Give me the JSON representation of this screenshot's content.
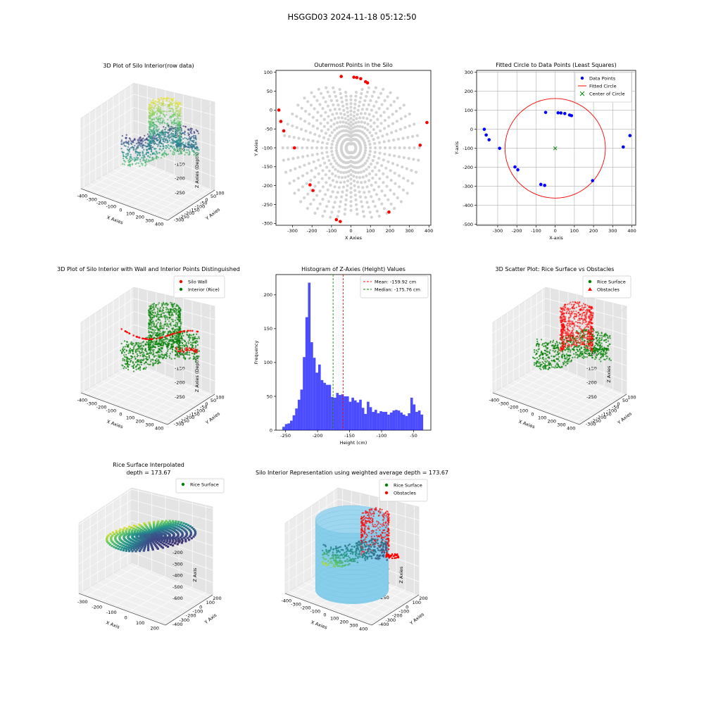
{
  "suptitle": "HSGGD03 2024-11-18 05:12:50",
  "colors": {
    "blue": "#0000ff",
    "red": "#ff0000",
    "green": "#008000",
    "gray": "#d3d3d3",
    "sky": "#87ceeb",
    "hist": "#0000ff"
  },
  "chart_data": [
    {
      "type": "scatter3d",
      "title": "3D Plot of Silo Interior(row data)",
      "xlabel": "X Axies",
      "ylabel": "Y Axies",
      "zlabel": "Z Axies (Depth)",
      "xticks": [
        "-400",
        "-300",
        "-200",
        "-100",
        "0",
        "100",
        "200",
        "300",
        "400"
      ],
      "yticks": [
        "100",
        "50",
        "0",
        "-50",
        "-100",
        "-150",
        "-200",
        "-250",
        "-300"
      ],
      "zticks": [
        "-50",
        "-100",
        "-150",
        "-200",
        "-250"
      ],
      "colormap": "viridis"
    },
    {
      "type": "scatter",
      "title": "Outermost Points in the Silo",
      "xlabel": "X Axies",
      "ylabel": "Y Axies",
      "xticks": [
        "-300",
        "-200",
        "-100",
        "0",
        "100",
        "200",
        "300",
        "400"
      ],
      "yticks": [
        "100",
        "50",
        "0",
        "-50",
        "-100",
        "-150",
        "-200",
        "-250",
        "-300"
      ],
      "xlim": [
        -385,
        410
      ],
      "ylim": [
        -305,
        105
      ],
      "series": [
        {
          "color": "gray"
        },
        {
          "color": "red",
          "points": [
            [
              -370,
              0
            ],
            [
              -360,
              -30
            ],
            [
              -345,
              -55
            ],
            [
              -290,
              -100
            ],
            [
              -210,
              -198
            ],
            [
              -195,
              -213
            ],
            [
              -75,
              -290
            ],
            [
              -55,
              -295
            ],
            [
              -50,
              89
            ],
            [
              15,
              87
            ],
            [
              30,
              86
            ],
            [
              50,
              83
            ],
            [
              75,
              75
            ],
            [
              85,
              72
            ],
            [
              195,
              -270
            ],
            [
              355,
              -93
            ],
            [
              390,
              -33
            ]
          ]
        }
      ]
    },
    {
      "type": "scatter",
      "title": "Fitted Circle to Data Points (Least Squares)",
      "xlabel": "X-axis",
      "ylabel": "Y-axis",
      "xticks": [
        "-300",
        "-200",
        "-100",
        "0",
        "100",
        "200",
        "300",
        "400"
      ],
      "yticks": [
        "300",
        "200",
        "100",
        "0",
        "-100",
        "-200",
        "-300",
        "-400",
        "-500"
      ],
      "xlim": [
        -410,
        420
      ],
      "ylim": [
        -505,
        310
      ],
      "legend": [
        "Data Points",
        "Fitted Circle",
        "Center of Circle"
      ],
      "series": [
        {
          "name": "Data Points",
          "color": "blue",
          "points": [
            [
              -370,
              0
            ],
            [
              -360,
              -30
            ],
            [
              -345,
              -55
            ],
            [
              -290,
              -100
            ],
            [
              -210,
              -198
            ],
            [
              -195,
              -213
            ],
            [
              -75,
              -290
            ],
            [
              -55,
              -295
            ],
            [
              -50,
              89
            ],
            [
              15,
              87
            ],
            [
              30,
              86
            ],
            [
              50,
              83
            ],
            [
              75,
              75
            ],
            [
              85,
              72
            ],
            [
              195,
              -270
            ],
            [
              355,
              -93
            ],
            [
              390,
              -33
            ]
          ]
        },
        {
          "name": "Fitted Circle",
          "color": "red",
          "center": [
            0,
            -100
          ],
          "radius": 262
        },
        {
          "name": "Center of Circle",
          "color": "green",
          "points": [
            [
              0,
              -100
            ]
          ]
        }
      ]
    },
    {
      "type": "scatter3d",
      "title": "3D Plot of Silo Interior with Wall and Interior Points Distinguished",
      "xlabel": "X Axies",
      "ylabel": "Y Axies",
      "zlabel": "Z Axies (Depth)",
      "xticks": [
        "-400",
        "-300",
        "-200",
        "-100",
        "0",
        "100",
        "200",
        "300",
        "400"
      ],
      "yticks": [
        "100",
        "50",
        "0",
        "-50",
        "-100",
        "-150",
        "-200",
        "-250",
        "-300"
      ],
      "zticks": [
        "-50",
        "-100",
        "-150",
        "-200",
        "-250"
      ],
      "legend": [
        "Silo Wall",
        "Interior (Rice)"
      ],
      "legend_colors": [
        "red",
        "green"
      ]
    },
    {
      "type": "bar",
      "title": "Histogram of Z-Axies (Height) Values",
      "xlabel": "Height (cm)",
      "ylabel": "Frequency",
      "xticks": [
        "-250",
        "-200",
        "-150",
        "-100",
        "-50"
      ],
      "yticks": [
        "0",
        "50",
        "100",
        "150",
        "200"
      ],
      "xlim": [
        -265,
        -23
      ],
      "ylim": [
        0,
        230
      ],
      "bin_start": -255,
      "bin_width": 4,
      "values": [
        5,
        9,
        10,
        14,
        22,
        32,
        45,
        60,
        108,
        167,
        218,
        130,
        107,
        85,
        97,
        74,
        70,
        67,
        67,
        49,
        48,
        55,
        52,
        53,
        50,
        50,
        42,
        48,
        44,
        41,
        45,
        33,
        24,
        42,
        34,
        27,
        30,
        25,
        28,
        27,
        27,
        23,
        26,
        29,
        30,
        29,
        26,
        23,
        21,
        25,
        48,
        38,
        27,
        29,
        23
      ],
      "legend": [
        "Mean: -159.92 cm",
        "Median: -175.76 cm"
      ],
      "mean": -159.92,
      "median": -175.76
    },
    {
      "type": "scatter3d",
      "title": "3D Scatter Plot: Rice Surface vs Obstacles",
      "xlabel": "X Axies",
      "ylabel": "Y Axies",
      "zlabel": "Z Axies",
      "xticks": [
        "-400",
        "-300",
        "-200",
        "-100",
        "0",
        "100",
        "200",
        "300",
        "400"
      ],
      "yticks": [
        "100",
        "50",
        "0",
        "-50",
        "-100",
        "-150",
        "-200",
        "-250",
        "-300"
      ],
      "zticks": [
        "-50",
        "-100",
        "-150",
        "-200",
        "-250"
      ],
      "legend": [
        "Rice Surface",
        "Obstacles"
      ],
      "legend_colors": [
        "green",
        "red"
      ]
    },
    {
      "type": "surface3d",
      "title": "Rice Surface Interpolated",
      "subtitle": "depth = 173.67",
      "xlabel": "X Axis",
      "ylabel": "Y Axis",
      "zlabel": "Z Axis",
      "xticks": [
        "-300",
        "-200",
        "-100",
        "0",
        "100",
        "200"
      ],
      "yticks": [
        "200",
        "100",
        "0",
        "-100",
        "-200",
        "-300",
        "-400"
      ],
      "zticks": [
        "0",
        "-100",
        "-200",
        "-300",
        "-400",
        "-500",
        "-600"
      ],
      "legend": [
        "Rice Surface"
      ],
      "legend_colors": [
        "green"
      ]
    },
    {
      "type": "scatter3d",
      "title": "Silo Interior Representation using weighted average depth = 173.67",
      "xlabel": "X Axies",
      "ylabel": "Y Axies",
      "zlabel": "Z Axies",
      "xticks": [
        "-400",
        "-300",
        "-200",
        "-100",
        "0",
        "100",
        "200",
        "300",
        "400"
      ],
      "yticks": [
        "200",
        "100",
        "0",
        "-100",
        "-200",
        "-300",
        "-400"
      ],
      "zticks": [
        "-50",
        "-100",
        "-150",
        "-200",
        "-250"
      ],
      "legend": [
        "Rice Surface",
        "Obstacles"
      ],
      "legend_colors": [
        "green",
        "red"
      ]
    }
  ]
}
